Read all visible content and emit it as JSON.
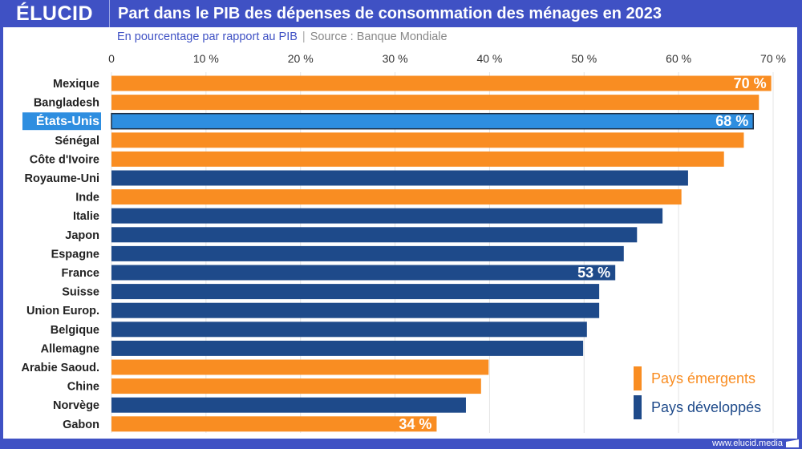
{
  "header": {
    "logo": "ÉLUCID",
    "title": "Part dans le PIB des dépenses de consommation des ménages en 2023"
  },
  "subtitle": {
    "unit": "En pourcentage par rapport au PIB",
    "separator": "|",
    "source": "Source : Banque Mondiale"
  },
  "footer": {
    "url": "www.elucid.media"
  },
  "colors": {
    "emerging": "#f98d22",
    "developed": "#1e4a8a",
    "highlight": "#2e8ee0",
    "brand": "#3f51c4"
  },
  "chart_data": {
    "type": "bar",
    "orientation": "horizontal",
    "title": "Part dans le PIB des dépenses de consommation des ménages en 2023",
    "xlim": [
      0,
      70
    ],
    "x_ticks": [
      "0",
      "10 %",
      "20 %",
      "30 %",
      "40 %",
      "50 %",
      "60 %",
      "70 %"
    ],
    "grid": true,
    "legend_placement": "bottom-right",
    "legend": [
      {
        "name": "Pays émergents",
        "group": "emerging"
      },
      {
        "name": "Pays développés",
        "group": "developed"
      }
    ],
    "categories": [
      "Mexique",
      "Bangladesh",
      "États-Unis",
      "Sénégal",
      "Côte d'Ivoire",
      "Royaume-Uni",
      "Inde",
      "Italie",
      "Japon",
      "Espagne",
      "France",
      "Suisse",
      "Union Europ.",
      "Belgique",
      "Allemagne",
      "Arabie Saoud.",
      "Chine",
      "Norvège",
      "Gabon"
    ],
    "values": [
      69.8,
      68.5,
      67.9,
      66.9,
      64.8,
      61.0,
      60.3,
      58.3,
      55.6,
      54.2,
      53.3,
      51.6,
      51.6,
      50.3,
      49.9,
      39.9,
      39.1,
      37.5,
      34.4
    ],
    "groups": [
      "emerging",
      "emerging",
      "developed",
      "emerging",
      "emerging",
      "developed",
      "emerging",
      "developed",
      "developed",
      "developed",
      "developed",
      "developed",
      "developed",
      "developed",
      "developed",
      "emerging",
      "emerging",
      "developed",
      "emerging"
    ],
    "highlighted": "États-Unis",
    "data_labels": {
      "Mexique": "70 %",
      "États-Unis": "68 %",
      "France": "53 %",
      "Gabon": "34 %"
    }
  }
}
